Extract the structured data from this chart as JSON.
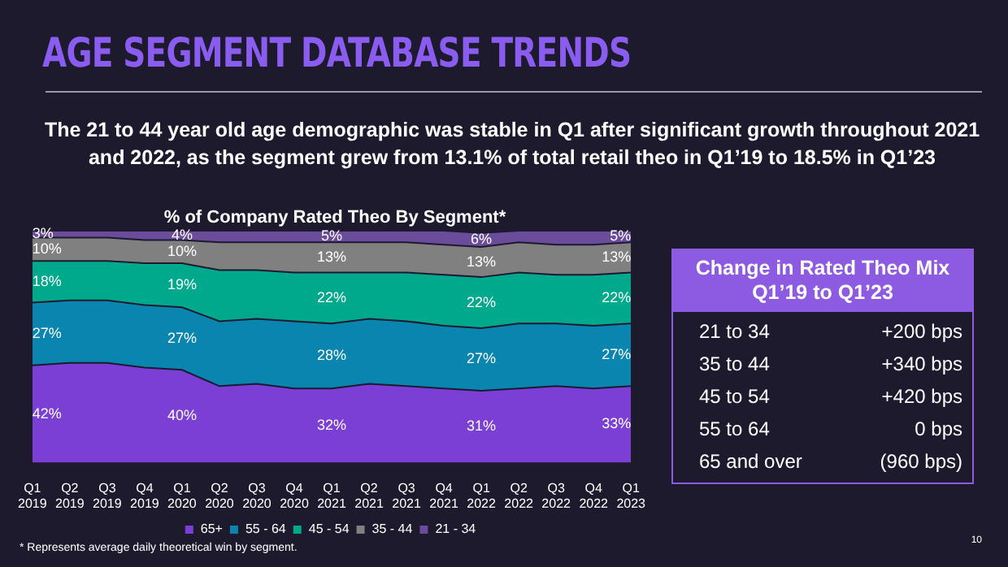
{
  "chart_data": [
    {
      "type": "area",
      "title": "% of Company Rated Theo By Segment*",
      "subtitle": "The 21 to 44 year old age demographic was stable in Q1 after significant growth throughout 2021 and 2022, as the segment grew from 13.1% of total retail theo in Q1’19 to 18.5% in Q1’23",
      "annotations": [
        "AGE SEGMENT DATABASE TRENDS",
        "* Represents average daily theoretical win by segment.",
        "10"
      ],
      "categories": [
        "Q1 2019",
        "Q2 2019",
        "Q3 2019",
        "Q4 2019",
        "Q1 2020",
        "Q2 2020",
        "Q3 2020",
        "Q4 2020",
        "Q1 2021",
        "Q2 2021",
        "Q3 2021",
        "Q4 2021",
        "Q1 2022",
        "Q2 2022",
        "Q3 2022",
        "Q4 2022",
        "Q1 2023"
      ],
      "stacked": true,
      "tick_labels": "x",
      "legend": "bottom",
      "series": [
        {
          "name": "65+",
          "color": "#7b3fd6",
          "values": [
            42,
            43,
            43,
            41,
            40,
            33,
            34,
            32,
            32,
            34,
            33,
            32,
            31,
            32,
            33,
            32,
            33
          ],
          "value_labels": [
            "42%",
            null,
            null,
            null,
            "40%",
            null,
            null,
            null,
            "32%",
            null,
            null,
            null,
            "31%",
            null,
            null,
            null,
            "33%"
          ]
        },
        {
          "name": "55 - 64",
          "color": "#0a85b0",
          "values": [
            27,
            27,
            27,
            27,
            27,
            28,
            28,
            29,
            28,
            28,
            28,
            27,
            27,
            28,
            27,
            27,
            27
          ],
          "value_labels": [
            "27%",
            null,
            null,
            null,
            "27%",
            null,
            null,
            null,
            "28%",
            null,
            null,
            null,
            "27%",
            null,
            null,
            null,
            "27%"
          ]
        },
        {
          "name": "45 - 54",
          "color": "#00a88c",
          "values": [
            18,
            17,
            17,
            18,
            19,
            22,
            21,
            21,
            22,
            20,
            21,
            22,
            22,
            22,
            21,
            22,
            22
          ],
          "value_labels": [
            "18%",
            null,
            null,
            null,
            "19%",
            null,
            null,
            null,
            "22%",
            null,
            null,
            null,
            "22%",
            null,
            null,
            null,
            "22%"
          ]
        },
        {
          "name": "35 - 44",
          "color": "#808080",
          "values": [
            10,
            10,
            10,
            10,
            10,
            12,
            12,
            13,
            13,
            13,
            13,
            13,
            13,
            13,
            13,
            13,
            13
          ],
          "value_labels": [
            "10%",
            null,
            null,
            null,
            "10%",
            null,
            null,
            null,
            "13%",
            null,
            null,
            null,
            "13%",
            null,
            null,
            null,
            "13%"
          ]
        },
        {
          "name": "21 - 34",
          "color": "#6b4c9a",
          "values": [
            3,
            3,
            3,
            4,
            4,
            5,
            5,
            5,
            5,
            5,
            5,
            6,
            6,
            5,
            6,
            6,
            5
          ],
          "value_labels": [
            "3%",
            null,
            null,
            null,
            "4%",
            null,
            null,
            null,
            "5%",
            null,
            null,
            null,
            "6%",
            null,
            null,
            null,
            "5%"
          ]
        }
      ]
    },
    {
      "type": "other",
      "title": "Change in Rated Theo Mix",
      "subtitle": "Q1’19 to Q1’23",
      "categories": [
        "21 to 34",
        "35 to 44",
        "45 to 54",
        "55 to 64",
        "65 and over"
      ],
      "value_labels": [
        "+200 bps",
        "+340 bps",
        "+420 bps",
        "0 bps",
        "(960 bps)"
      ],
      "color": "#8d5ae2"
    }
  ]
}
